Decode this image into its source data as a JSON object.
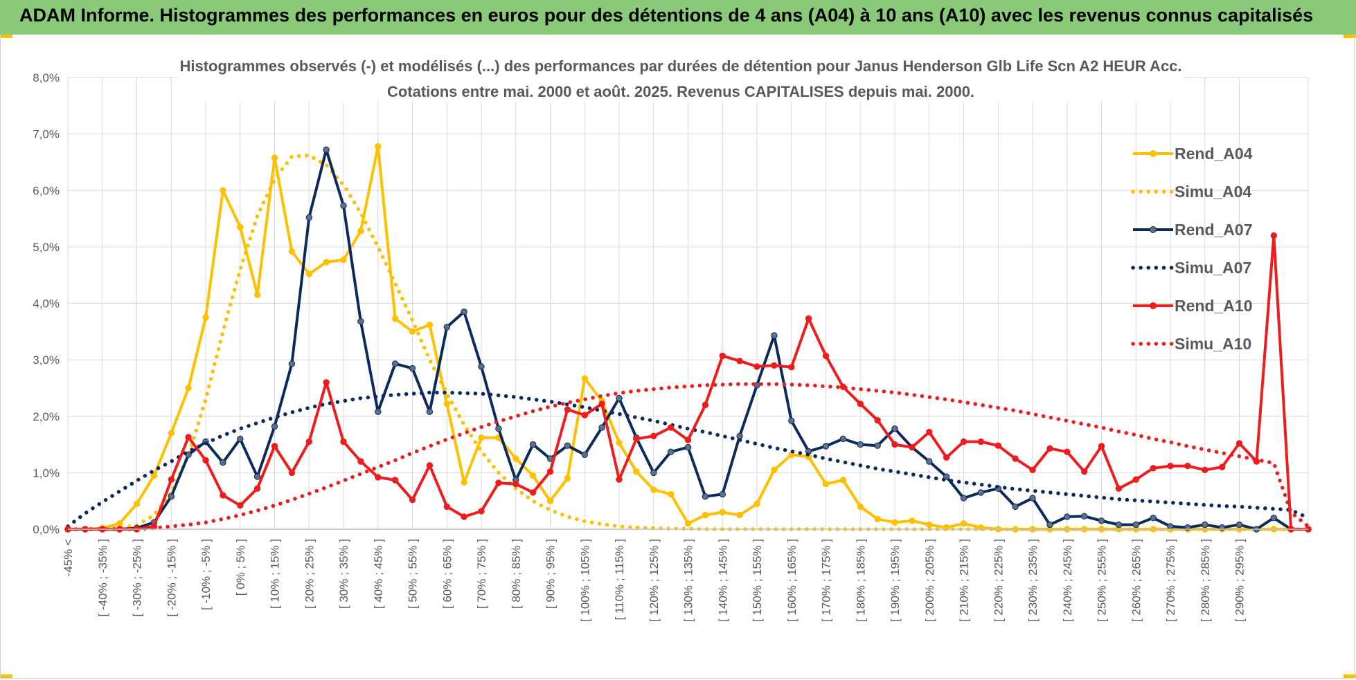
{
  "banner": {
    "title": "ADAM Informe. Histogrammes des performances en euros pour des détentions de 4 ans (A04) à 10 ans (A10) avec les revenus connus capitalisés"
  },
  "colors": {
    "banner_bg": "#8ac97a",
    "corner_accent": "#f5c300",
    "A04": "#ffc000",
    "A07": "#0c2a5c",
    "A10": "#ee1c1c",
    "grid": "#d9d9d9",
    "text": "#595959"
  },
  "chart_data": {
    "type": "line",
    "title": "Histogrammes observés (-) et modélisés (...) des performances par durées de détention pour Janus Henderson Glb Life Scn A2 HEUR Acc.",
    "subtitle": "Cotations entre mai. 2000 et août. 2025. Revenus CAPITALISES depuis mai. 2000.",
    "ylim": [
      0,
      8
    ],
    "yticks": [
      "0,0%",
      "1,0%",
      "2,0%",
      "3,0%",
      "4,0%",
      "5,0%",
      "6,0%",
      "7,0%",
      "8,0%"
    ],
    "grid": true,
    "legend_position": "right",
    "x_labels": [
      "-45% <",
      "[ -40% ; -35% ]",
      "[ -30% ; -25% ]",
      "[ -20% ; -15% ]",
      "[ -10% ; -5% ]",
      "[ 0% ; 5% ]",
      "[ 10% ; 15% ]",
      "[ 20% ; 25% ]",
      "[ 30% ; 35% ]",
      "[ 40% ; 45% ]",
      "[ 50% ; 55% ]",
      "[ 60% ; 65% ]",
      "[ 70% ; 75% ]",
      "[ 80% ; 85% ]",
      "[ 90% ; 95% ]",
      "[ 100% ; 105% ]",
      "[ 110% ; 115% ]",
      "[ 120% ; 125% ]",
      "[ 130% ; 135% ]",
      "[ 140% ; 145% ]",
      "[ 150% ; 155% ]",
      "[ 160% ; 165% ]",
      "[ 170% ; 175% ]",
      "[ 180% ; 185% ]",
      "[ 190% ; 195% ]",
      "[ 200% ; 205% ]",
      "[ 210% ; 215% ]",
      "[ 220% ; 225% ]",
      "[ 230% ; 235% ]",
      "[ 240% ; 245% ]",
      "[ 250% ; 255% ]",
      "[ 260% ; 265% ]",
      "[ 270% ; 275% ]",
      "[ 280% ; 285% ]",
      "[ 290% ; 295% ]"
    ],
    "series": [
      {
        "name": "Rend_A04",
        "style": "solid",
        "color": "#ffc000",
        "values": [
          0,
          0,
          0.02,
          0.1,
          0.45,
          0.95,
          1.7,
          2.5,
          3.75,
          6.0,
          5.35,
          4.15,
          6.58,
          4.92,
          4.52,
          4.73,
          4.77,
          5.28,
          6.78,
          3.73,
          3.5,
          3.62,
          2.22,
          0.83,
          1.62,
          1.62,
          1.25,
          0.95,
          0.5,
          0.9,
          2.67,
          2.27,
          1.53,
          1.02,
          0.7,
          0.62,
          0.1,
          0.25,
          0.3,
          0.25,
          0.45,
          1.05,
          1.32,
          1.28,
          0.8,
          0.87,
          0.4,
          0.18,
          0.12,
          0.15,
          0.08,
          0.03,
          0.1,
          0.03,
          0,
          0,
          0,
          0,
          0,
          0,
          0,
          0,
          0,
          0,
          0,
          0,
          0,
          0,
          0,
          0,
          0,
          0,
          0
        ]
      },
      {
        "name": "Simu_A04",
        "style": "dotted",
        "color": "#ffc000",
        "values": [
          0,
          0,
          0.01,
          0.02,
          0.07,
          0.25,
          0.65,
          1.3,
          2.3,
          3.5,
          4.6,
          5.55,
          6.2,
          6.6,
          6.62,
          6.45,
          6.1,
          5.6,
          5.0,
          4.35,
          3.7,
          3.0,
          2.4,
          1.85,
          1.38,
          1.0,
          0.72,
          0.5,
          0.34,
          0.22,
          0.14,
          0.09,
          0.05,
          0.03,
          0.02,
          0.01,
          0.01,
          0,
          0,
          0,
          0,
          0,
          0,
          0,
          0,
          0,
          0,
          0,
          0,
          0,
          0,
          0,
          0,
          0,
          0,
          0,
          0,
          0,
          0,
          0,
          0,
          0,
          0,
          0,
          0,
          0,
          0,
          0,
          0,
          0,
          0,
          0,
          0
        ]
      },
      {
        "name": "Rend_A07",
        "style": "solid",
        "color": "#0c2a5c",
        "values": [
          0,
          0,
          0,
          0,
          0.02,
          0.12,
          0.58,
          1.32,
          1.55,
          1.18,
          1.6,
          0.93,
          1.82,
          2.93,
          5.52,
          6.72,
          5.73,
          3.68,
          2.08,
          2.93,
          2.85,
          2.08,
          3.58,
          3.85,
          2.88,
          1.78,
          0.87,
          1.5,
          1.25,
          1.48,
          1.32,
          1.8,
          2.32,
          1.62,
          1.0,
          1.37,
          1.45,
          0.58,
          0.62,
          1.65,
          2.55,
          3.43,
          1.92,
          1.38,
          1.47,
          1.6,
          1.5,
          1.48,
          1.78,
          1.45,
          1.2,
          0.93,
          0.55,
          0.65,
          0.72,
          0.4,
          0.55,
          0.08,
          0.22,
          0.23,
          0.15,
          0.08,
          0.08,
          0.2,
          0.05,
          0.03,
          0.08,
          0.03,
          0.08,
          0,
          0.2,
          0,
          0
        ]
      },
      {
        "name": "Simu_A07",
        "style": "dotted",
        "color": "#0c2a5c",
        "values": [
          0.05,
          0.28,
          0.48,
          0.67,
          0.86,
          1.04,
          1.2,
          1.38,
          1.52,
          1.66,
          1.78,
          1.88,
          1.98,
          2.07,
          2.15,
          2.22,
          2.27,
          2.32,
          2.35,
          2.38,
          2.4,
          2.42,
          2.42,
          2.41,
          2.4,
          2.37,
          2.34,
          2.3,
          2.26,
          2.21,
          2.16,
          2.1,
          2.04,
          1.98,
          1.92,
          1.85,
          1.78,
          1.72,
          1.65,
          1.58,
          1.51,
          1.44,
          1.38,
          1.32,
          1.25,
          1.19,
          1.13,
          1.07,
          1.02,
          0.97,
          0.92,
          0.87,
          0.83,
          0.79,
          0.75,
          0.71,
          0.68,
          0.65,
          0.62,
          0.59,
          0.56,
          0.53,
          0.51,
          0.49,
          0.47,
          0.45,
          0.43,
          0.41,
          0.4,
          0.38,
          0.36,
          0.34,
          0.2
        ]
      },
      {
        "name": "Rend_A10",
        "style": "solid",
        "color": "#ee1c1c",
        "values": [
          0,
          0,
          0,
          0,
          0,
          0.05,
          0.88,
          1.63,
          1.22,
          0.6,
          0.42,
          0.72,
          1.47,
          1.0,
          1.55,
          2.6,
          1.55,
          1.2,
          0.92,
          0.87,
          0.52,
          1.13,
          0.4,
          0.22,
          0.32,
          0.82,
          0.8,
          0.65,
          1.02,
          2.12,
          2.02,
          2.22,
          0.88,
          1.6,
          1.65,
          1.8,
          1.58,
          2.2,
          3.07,
          2.98,
          2.88,
          2.9,
          2.87,
          3.73,
          3.07,
          2.52,
          2.22,
          1.93,
          1.5,
          1.45,
          1.72,
          1.27,
          1.55,
          1.55,
          1.48,
          1.25,
          1.05,
          1.43,
          1.37,
          1.02,
          1.47,
          0.72,
          0.88,
          1.08,
          1.12,
          1.12,
          1.05,
          1.1,
          1.52,
          1.2,
          5.2,
          0,
          0
        ]
      },
      {
        "name": "Simu_A10",
        "style": "dotted",
        "color": "#ee1c1c",
        "values": [
          0,
          0,
          0,
          0,
          0,
          0.02,
          0.05,
          0.08,
          0.12,
          0.18,
          0.25,
          0.33,
          0.42,
          0.52,
          0.63,
          0.74,
          0.86,
          0.98,
          1.1,
          1.22,
          1.35,
          1.47,
          1.59,
          1.7,
          1.81,
          1.91,
          2.0,
          2.09,
          2.17,
          2.24,
          2.3,
          2.36,
          2.41,
          2.45,
          2.48,
          2.51,
          2.53,
          2.55,
          2.56,
          2.57,
          2.57,
          2.57,
          2.56,
          2.55,
          2.53,
          2.51,
          2.48,
          2.45,
          2.42,
          2.38,
          2.34,
          2.3,
          2.25,
          2.2,
          2.15,
          2.1,
          2.04,
          1.98,
          1.92,
          1.86,
          1.8,
          1.73,
          1.67,
          1.6,
          1.54,
          1.47,
          1.41,
          1.35,
          1.29,
          1.23,
          1.17,
          0.3,
          0.05
        ]
      }
    ]
  }
}
